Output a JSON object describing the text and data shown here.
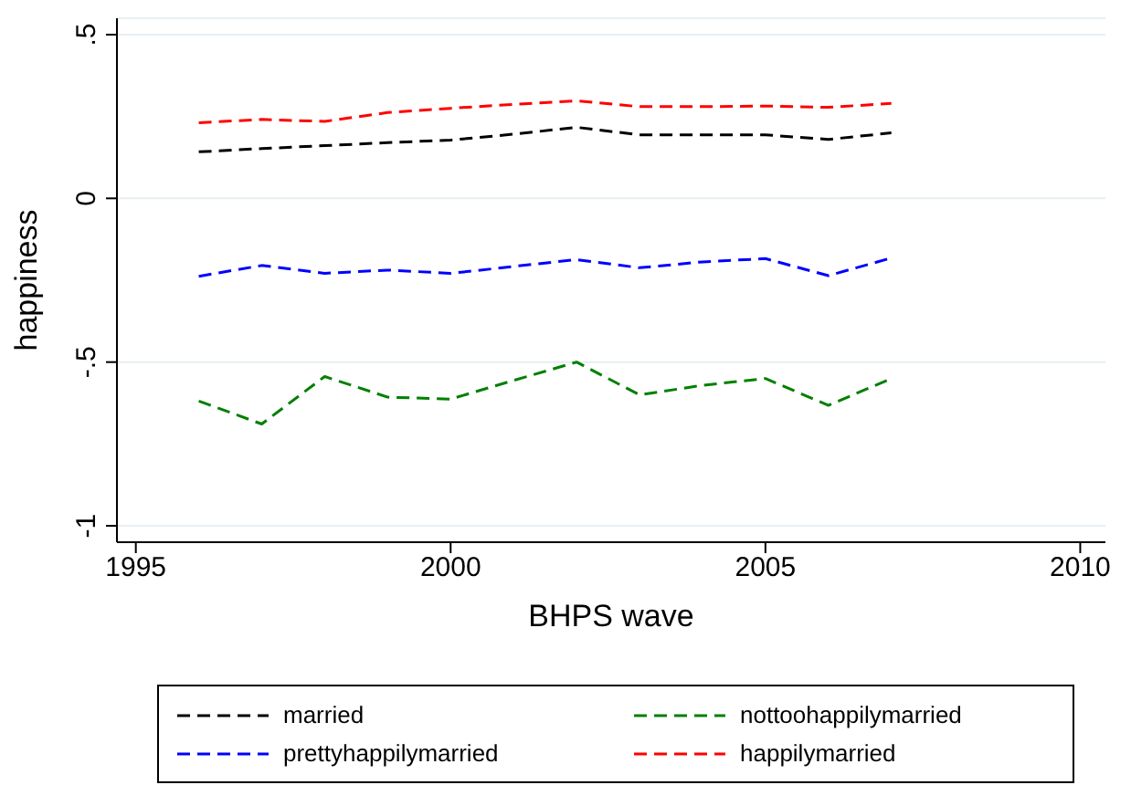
{
  "chart_data": {
    "type": "line",
    "xlabel": "BHPS wave",
    "ylabel": "happiness",
    "x": [
      1996,
      1997,
      1998,
      1999,
      2000,
      2001,
      2002,
      2003,
      2004,
      2005,
      2006,
      2007
    ],
    "series": [
      {
        "name": "married",
        "color": "#000000",
        "values": [
          0.142,
          0.152,
          0.161,
          0.17,
          0.178,
          0.196,
          0.217,
          0.194,
          0.194,
          0.194,
          0.18,
          0.2
        ]
      },
      {
        "name": "nottoohappilymarried",
        "color": "#008000",
        "values": [
          -0.619,
          -0.689,
          -0.544,
          -0.607,
          -0.613,
          -0.556,
          -0.5,
          -0.6,
          -0.571,
          -0.55,
          -0.632,
          -0.55
        ]
      },
      {
        "name": "prettyhappilymarried",
        "color": "#0000ff",
        "values": [
          -0.238,
          -0.205,
          -0.229,
          -0.219,
          -0.229,
          -0.208,
          -0.187,
          -0.212,
          -0.194,
          -0.184,
          -0.236,
          -0.182
        ]
      },
      {
        "name": "happilymarried",
        "color": "#ff0000",
        "values": [
          0.231,
          0.241,
          0.235,
          0.262,
          0.275,
          0.287,
          0.298,
          0.28,
          0.28,
          0.282,
          0.278,
          0.29
        ]
      }
    ],
    "xlim": [
      1994.7,
      2010.4
    ],
    "xticks": [
      1995,
      2000,
      2005,
      2010
    ],
    "ylim": [
      -1.05,
      0.55
    ],
    "yticks": [
      {
        "value": -1,
        "label": "-1"
      },
      {
        "value": -0.5,
        "label": "-.5"
      },
      {
        "value": 0,
        "label": "0"
      },
      {
        "value": 0.5,
        "label": ".5"
      }
    ],
    "grid": "y",
    "legend": "bottom",
    "line_style": "dashed",
    "marker": "none"
  }
}
